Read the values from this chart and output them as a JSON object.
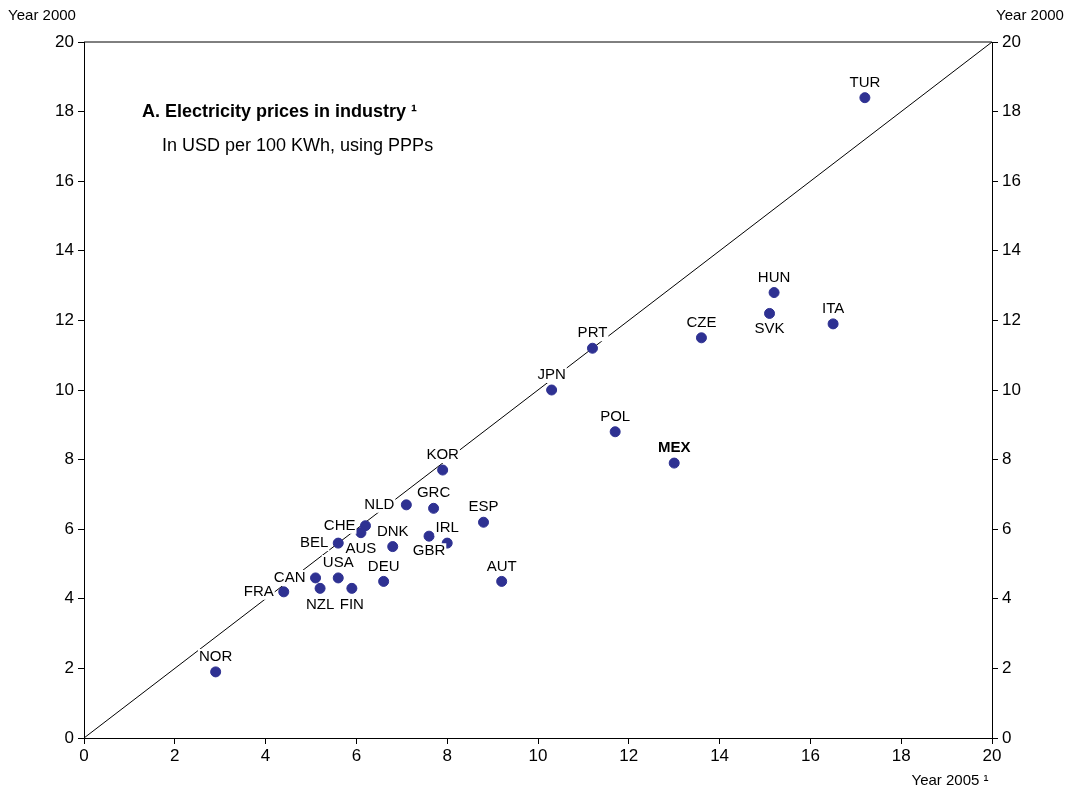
{
  "chart_data": {
    "type": "scatter",
    "title": "A. Electricity prices in industry ¹",
    "subtitle": "In USD per 100 KWh, using PPPs",
    "xlabel": "Year 2005 ¹",
    "ylabel": "Year 2000",
    "y2label": "Year 2000",
    "series": [
      {
        "color": "#2e3192",
        "marker": "circle",
        "x": [
          17.2,
          15.2,
          15.1,
          16.5,
          13.6,
          11.2,
          10.3,
          11.7,
          13.0,
          7.9,
          7.7,
          7.1,
          8.8,
          6.2,
          6.1,
          5.6,
          6.8,
          8.0,
          7.6,
          6.6,
          9.2,
          5.6,
          5.1,
          5.2,
          5.9,
          4.4,
          2.9
        ],
        "values": [
          18.4,
          12.8,
          12.2,
          11.9,
          11.5,
          11.2,
          10.0,
          8.8,
          7.9,
          7.7,
          6.6,
          6.7,
          6.2,
          6.1,
          5.9,
          5.6,
          5.5,
          5.6,
          5.8,
          4.5,
          4.5,
          4.6,
          4.6,
          4.3,
          4.3,
          4.2,
          1.9
        ]
      },
      {
        "type": "line",
        "color": "#000000",
        "marker": "none",
        "x": [
          0,
          20
        ],
        "values": [
          0,
          20
        ]
      }
    ],
    "annotations": [
      {
        "text": "TUR",
        "x": 17.2,
        "y": 18.4
      },
      {
        "text": "HUN",
        "x": 15.2,
        "y": 12.8
      },
      {
        "text": "SVK",
        "x": 15.1,
        "y": 12.2
      },
      {
        "text": "ITA",
        "x": 16.5,
        "y": 11.9
      },
      {
        "text": "CZE",
        "x": 13.6,
        "y": 11.5
      },
      {
        "text": "PRT",
        "x": 11.2,
        "y": 11.2
      },
      {
        "text": "JPN",
        "x": 10.3,
        "y": 10.0
      },
      {
        "text": "POL",
        "x": 11.7,
        "y": 8.8
      },
      {
        "text": "MEX",
        "x": 13.0,
        "y": 7.9
      },
      {
        "text": "KOR",
        "x": 7.9,
        "y": 7.7
      },
      {
        "text": "GRC",
        "x": 7.7,
        "y": 6.6
      },
      {
        "text": "NLD",
        "x": 7.1,
        "y": 6.7
      },
      {
        "text": "ESP",
        "x": 8.8,
        "y": 6.2
      },
      {
        "text": "CHE",
        "x": 6.2,
        "y": 6.1
      },
      {
        "text": "AUS",
        "x": 6.1,
        "y": 5.9
      },
      {
        "text": "BEL",
        "x": 5.6,
        "y": 5.6
      },
      {
        "text": "DNK",
        "x": 6.8,
        "y": 5.5
      },
      {
        "text": "IRL",
        "x": 8.0,
        "y": 5.6
      },
      {
        "text": "GBR",
        "x": 7.6,
        "y": 5.8
      },
      {
        "text": "DEU",
        "x": 6.6,
        "y": 4.5
      },
      {
        "text": "AUT",
        "x": 9.2,
        "y": 4.5
      },
      {
        "text": "USA",
        "x": 5.6,
        "y": 4.6
      },
      {
        "text": "CAN",
        "x": 5.1,
        "y": 4.6
      },
      {
        "text": "NZL",
        "x": 5.2,
        "y": 4.3
      },
      {
        "text": "FIN",
        "x": 5.9,
        "y": 4.3
      },
      {
        "text": "FRA",
        "x": 4.4,
        "y": 4.2
      },
      {
        "text": "NOR",
        "x": 2.9,
        "y": 1.9
      }
    ],
    "xlim": [
      0,
      20
    ],
    "xticks": [
      0,
      2,
      4,
      6,
      8,
      10,
      12,
      14,
      16,
      18,
      20
    ],
    "ylim": [
      0,
      20
    ],
    "yticks": [
      0,
      2,
      4,
      6,
      8,
      10,
      12,
      14,
      16,
      18,
      20
    ],
    "y2lim": [
      0,
      20
    ],
    "y2ticks": [
      0,
      2,
      4,
      6,
      8,
      10,
      12,
      14,
      16,
      18,
      20
    ],
    "grid": false,
    "legend": false,
    "line_style": "solid"
  }
}
